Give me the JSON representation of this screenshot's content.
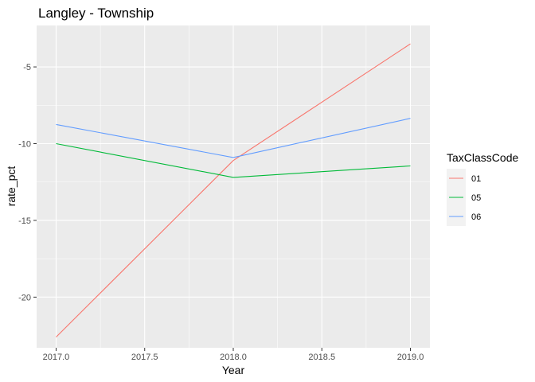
{
  "chart_data": {
    "type": "line",
    "title": "Langley - Township",
    "xlabel": "Year",
    "ylabel": "rate_pct",
    "x_ticks": [
      "2017.0",
      "2017.5",
      "2018.0",
      "2018.5",
      "2019.0"
    ],
    "y_ticks": [
      "-5",
      "-10",
      "-15",
      "-20"
    ],
    "xlim": [
      2016.89,
      2019.11
    ],
    "ylim": [
      -23.3,
      -2.3
    ],
    "grid": true,
    "legend": {
      "title": "TaxClassCode",
      "position": "right"
    },
    "series": [
      {
        "name": "01",
        "color": "#F8766D",
        "x": [
          2017,
          2018,
          2019
        ],
        "y": [
          -22.6,
          -11.1,
          -3.5
        ]
      },
      {
        "name": "05",
        "color": "#00BA38",
        "x": [
          2017,
          2018,
          2019
        ],
        "y": [
          -10.0,
          -12.2,
          -11.45
        ]
      },
      {
        "name": "06",
        "color": "#619CFF",
        "x": [
          2017,
          2018,
          2019
        ],
        "y": [
          -8.75,
          -10.9,
          -8.35
        ]
      }
    ],
    "panel_background": "#EBEBEB",
    "grid_color": "#FFFFFF"
  }
}
